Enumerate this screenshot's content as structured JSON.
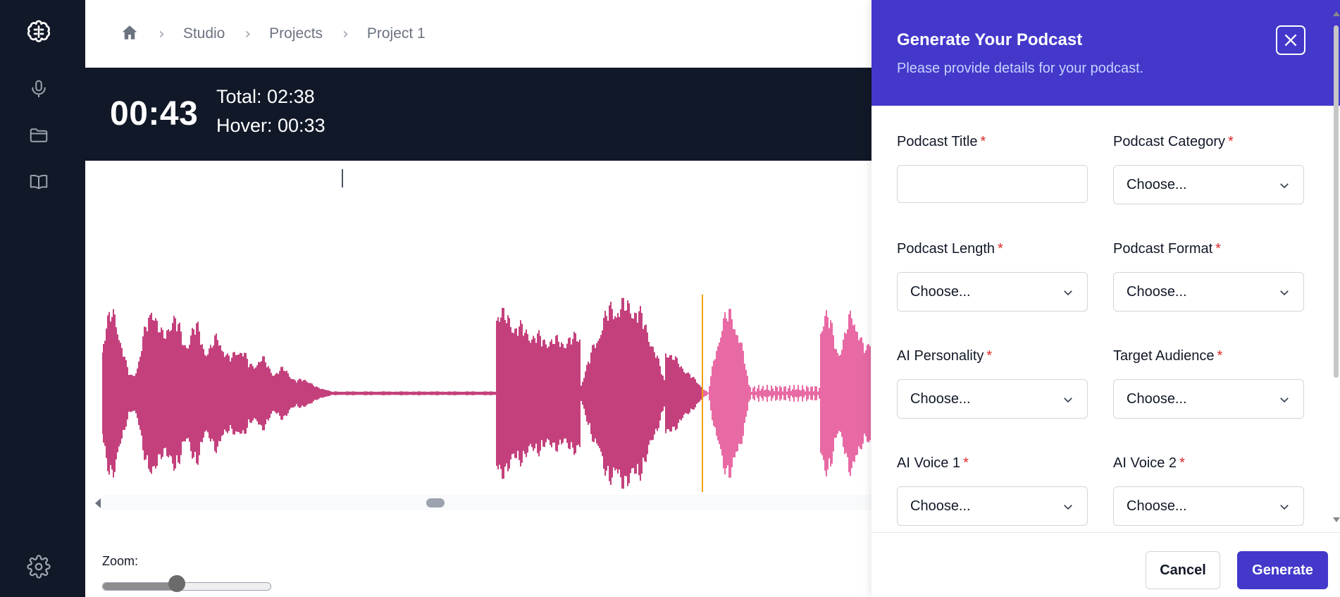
{
  "colors": {
    "accent": "#4338ca",
    "wave_played": "#b5105c",
    "wave_unplayed": "#e2448e",
    "playhead": "#f59e0b",
    "dark_bg": "#111827"
  },
  "sidebar": {
    "items": [
      {
        "icon": "brain-icon"
      },
      {
        "icon": "microphone-icon"
      },
      {
        "icon": "folder-icon"
      },
      {
        "icon": "book-open-icon"
      }
    ],
    "settings_icon": "gear-icon"
  },
  "breadcrumb": {
    "items": [
      "Studio",
      "Projects",
      "Project 1"
    ]
  },
  "player": {
    "current_time": "00:43",
    "total": "Total: 02:38",
    "hover": "Hover: 00:33"
  },
  "zoom": {
    "label": "Zoom:",
    "value": 0.44
  },
  "drawer": {
    "title": "Generate Your Podcast",
    "subtitle": "Please provide details for your podcast.",
    "fields": {
      "title": {
        "label": "Podcast Title",
        "value": ""
      },
      "category": {
        "label": "Podcast Category",
        "value": "Choose..."
      },
      "length": {
        "label": "Podcast Length",
        "value": "Choose..."
      },
      "format": {
        "label": "Podcast Format",
        "value": "Choose..."
      },
      "personality": {
        "label": "AI Personality",
        "value": "Choose..."
      },
      "audience": {
        "label": "Target Audience",
        "value": "Choose..."
      },
      "voice1": {
        "label": "AI Voice 1",
        "value": "Choose..."
      },
      "voice2": {
        "label": "AI Voice 2",
        "value": "Choose..."
      }
    },
    "required_mark": "*",
    "cancel_label": "Cancel",
    "generate_label": "Generate"
  }
}
